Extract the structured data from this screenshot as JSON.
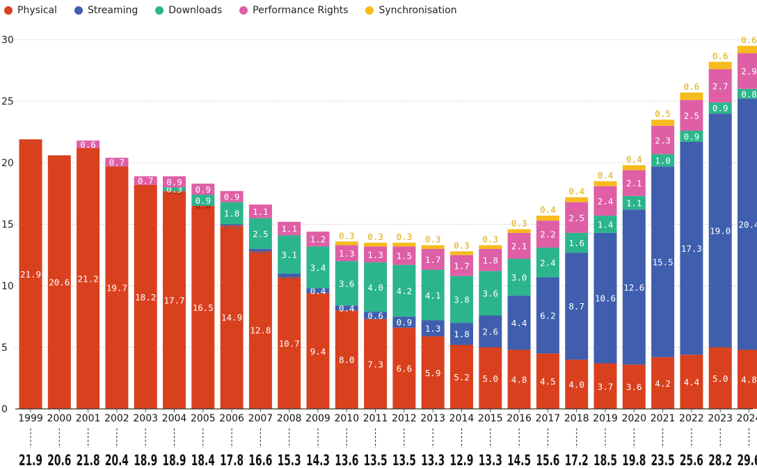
{
  "chart_data": {
    "type": "bar",
    "stacked": true,
    "categories": [
      "1999",
      "2000",
      "2001",
      "2002",
      "2003",
      "2004",
      "2005",
      "2006",
      "2007",
      "2008",
      "2009",
      "2010",
      "2011",
      "2012",
      "2013",
      "2014",
      "2015",
      "2016",
      "2017",
      "2018",
      "2019",
      "2020",
      "2021",
      "2022",
      "2023",
      "2024"
    ],
    "series": [
      {
        "name": "Physical",
        "color": "#d9411e",
        "values": [
          21.9,
          20.6,
          21.2,
          19.7,
          18.2,
          17.7,
          16.5,
          14.9,
          12.8,
          10.7,
          9.4,
          8.0,
          7.3,
          6.6,
          5.9,
          5.2,
          5.0,
          4.8,
          4.5,
          4.0,
          3.7,
          3.6,
          4.2,
          4.4,
          5.0,
          4.8
        ]
      },
      {
        "name": "Streaming",
        "color": "#3f5fae",
        "values": [
          0,
          0,
          0,
          0,
          0,
          0.0,
          0.0,
          0.1,
          0.2,
          0.3,
          0.4,
          0.4,
          0.6,
          0.9,
          1.3,
          1.8,
          2.6,
          4.4,
          6.2,
          8.7,
          10.6,
          12.6,
          15.5,
          17.3,
          19.0,
          20.4
        ]
      },
      {
        "name": "Downloads",
        "color": "#2cb58c",
        "values": [
          0,
          0,
          0,
          0,
          0,
          0.3,
          0.9,
          1.8,
          2.5,
          3.1,
          3.4,
          3.6,
          4.0,
          4.2,
          4.1,
          3.8,
          3.6,
          3.0,
          2.4,
          1.6,
          1.4,
          1.1,
          1.0,
          0.9,
          0.9,
          0.8
        ]
      },
      {
        "name": "Performance Rights",
        "color": "#de5fa6",
        "values": [
          0,
          0,
          0.6,
          0.7,
          0.7,
          0.9,
          0.9,
          0.9,
          1.1,
          1.1,
          1.2,
          1.3,
          1.3,
          1.5,
          1.7,
          1.7,
          1.8,
          2.1,
          2.2,
          2.5,
          2.4,
          2.1,
          2.3,
          2.5,
          2.7,
          2.9
        ]
      },
      {
        "name": "Synchronisation",
        "color": "#f6bb1c",
        "values": [
          0,
          0,
          0,
          0,
          0,
          0,
          0,
          0,
          0,
          0,
          0,
          0.3,
          0.3,
          0.3,
          0.3,
          0.3,
          0.3,
          0.3,
          0.4,
          0.4,
          0.4,
          0.4,
          0.5,
          0.6,
          0.6,
          0.6
        ]
      }
    ],
    "segment_labels": [
      [
        "21.9",
        "",
        "",
        "",
        ""
      ],
      [
        "20.6",
        "",
        "",
        "",
        ""
      ],
      [
        "21.2",
        "",
        "",
        "0.6",
        ""
      ],
      [
        "19.7",
        "",
        "",
        "0.7",
        ""
      ],
      [
        "18.2",
        "",
        "",
        "0.7",
        ""
      ],
      [
        "17.7",
        "0.0",
        "0.3",
        "0.9",
        ""
      ],
      [
        "16.5",
        "0.0",
        "0.9",
        "0.9",
        ""
      ],
      [
        "14.9",
        "0.1",
        "1.8",
        "0.9",
        ""
      ],
      [
        "12.8",
        "0.2",
        "2.5",
        "1.1",
        ""
      ],
      [
        "10.7",
        "0.3",
        "3.1",
        "1.1",
        ""
      ],
      [
        "9.4",
        "0.4",
        "3.4",
        "1.2",
        ""
      ],
      [
        "8.0",
        "0.4",
        "3.6",
        "1.3",
        "0.3"
      ],
      [
        "7.3",
        "0.6",
        "4.0",
        "1.3",
        "0.3"
      ],
      [
        "6.6",
        "0.9",
        "4.2",
        "1.5",
        "0.3"
      ],
      [
        "5.9",
        "1.3",
        "4.1",
        "1.7",
        "0.3"
      ],
      [
        "5.2",
        "1.8",
        "3.8",
        "1.7",
        "0.3"
      ],
      [
        "5.0",
        "2.6",
        "3.6",
        "1.8",
        "0.3"
      ],
      [
        "4.8",
        "4.4",
        "3.0",
        "2.1",
        "0.3"
      ],
      [
        "4.5",
        "6.2",
        "2.4",
        "2.2",
        "0.4"
      ],
      [
        "4.0",
        "8.7",
        "1.6",
        "2.5",
        "0.4"
      ],
      [
        "3.7",
        "10.6",
        "1.4",
        "2.4",
        "0.4"
      ],
      [
        "3.6",
        "12.6",
        "1.1",
        "2.1",
        "0.4"
      ],
      [
        "4.2",
        "15.5",
        "1.0",
        "2.3",
        "0.5"
      ],
      [
        "4.4",
        "17.3",
        "0.9",
        "2.5",
        "0.6"
      ],
      [
        "5.0",
        "19.0",
        "0.9",
        "2.7",
        "0.6"
      ],
      [
        "4.8",
        "20.4",
        "0.8",
        "2.9",
        "0.6"
      ]
    ],
    "totals": [
      "21.9",
      "20.6",
      "21.8",
      "20.4",
      "18.9",
      "18.9",
      "18.4",
      "17.8",
      "16.6",
      "15.3",
      "14.3",
      "13.6",
      "13.5",
      "13.5",
      "13.3",
      "12.9",
      "13.3",
      "14.5",
      "15.6",
      "17.2",
      "18.5",
      "19.8",
      "23.5",
      "25.6",
      "28.2",
      "29.6"
    ],
    "yticks": [
      "0",
      "5",
      "10",
      "15",
      "20",
      "25",
      "30"
    ],
    "ylim": [
      0,
      30
    ],
    "grid": true,
    "legend_position": "top-left",
    "title": "",
    "xlabel": "",
    "ylabel": ""
  }
}
